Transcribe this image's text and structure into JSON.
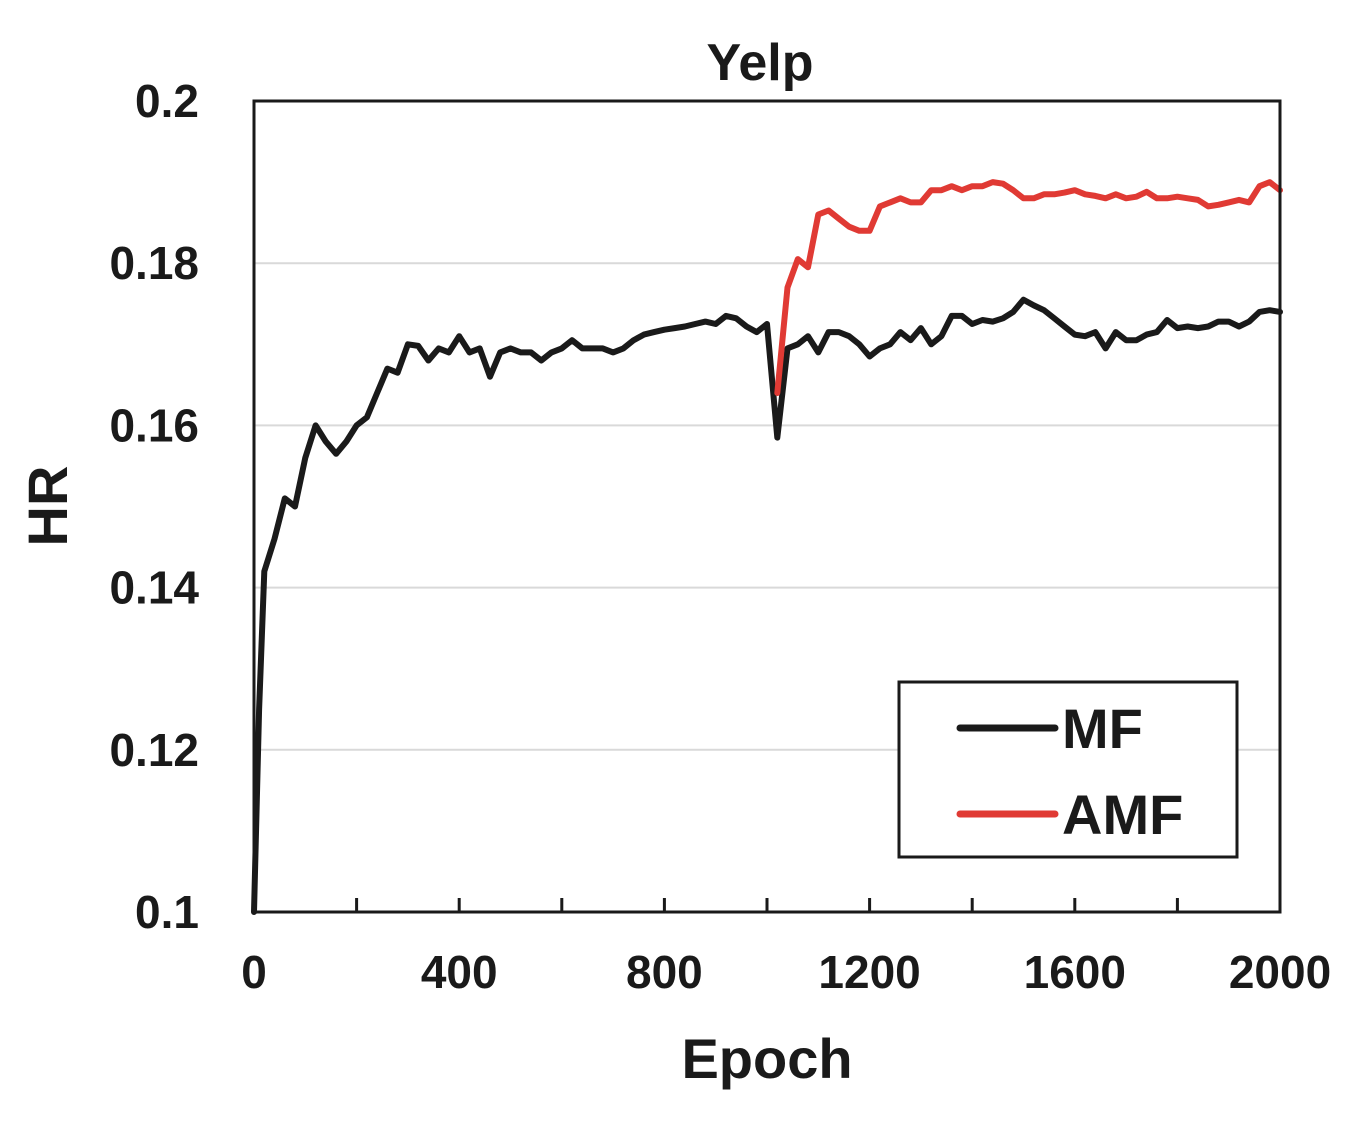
{
  "chart_data": {
    "type": "line",
    "title": "Yelp",
    "xlabel": "Epoch",
    "ylabel": "HR",
    "xlim": [
      0,
      2000
    ],
    "ylim": [
      0.1,
      0.2
    ],
    "xticks": [
      0,
      400,
      800,
      1200,
      1600,
      2000
    ],
    "xtick_labels": [
      "0",
      "400",
      "800",
      "1200",
      "1600",
      "2000"
    ],
    "x_minor_ticks": [
      0,
      200,
      400,
      600,
      800,
      1000,
      1200,
      1400,
      1600,
      1800,
      2000
    ],
    "yticks": [
      0.1,
      0.12,
      0.14,
      0.16,
      0.18,
      0.2
    ],
    "ytick_labels": [
      "0.1",
      "0.12",
      "0.14",
      "0.16",
      "0.18",
      "0.2"
    ],
    "grid": "horizontal",
    "legend_position": "bottom-right",
    "series": [
      {
        "name": "MF",
        "color": "#1a1a1a",
        "x": [
          0,
          10,
          20,
          40,
          60,
          80,
          100,
          120,
          140,
          160,
          180,
          200,
          220,
          240,
          260,
          280,
          300,
          320,
          340,
          360,
          380,
          400,
          420,
          440,
          460,
          480,
          500,
          520,
          540,
          560,
          580,
          600,
          620,
          640,
          660,
          680,
          700,
          720,
          740,
          760,
          780,
          800,
          820,
          840,
          860,
          880,
          900,
          920,
          940,
          960,
          980,
          1000,
          1020,
          1040,
          1060,
          1080,
          1100,
          1120,
          1140,
          1160,
          1180,
          1200,
          1220,
          1240,
          1260,
          1280,
          1300,
          1320,
          1340,
          1360,
          1380,
          1400,
          1420,
          1440,
          1460,
          1480,
          1500,
          1520,
          1540,
          1560,
          1580,
          1600,
          1620,
          1640,
          1660,
          1680,
          1700,
          1720,
          1740,
          1760,
          1780,
          1800,
          1820,
          1840,
          1860,
          1880,
          1900,
          1920,
          1940,
          1960,
          1980,
          2000
        ],
        "y": [
          0.1,
          0.125,
          0.142,
          0.146,
          0.151,
          0.15,
          0.156,
          0.16,
          0.158,
          0.1565,
          0.158,
          0.16,
          0.161,
          0.164,
          0.167,
          0.1665,
          0.17,
          0.1698,
          0.168,
          0.1695,
          0.169,
          0.171,
          0.169,
          0.1695,
          0.166,
          0.169,
          0.1695,
          0.169,
          0.169,
          0.168,
          0.169,
          0.1695,
          0.1705,
          0.1695,
          0.1695,
          0.1695,
          0.169,
          0.1695,
          0.1705,
          0.1712,
          0.1715,
          0.1718,
          0.172,
          0.1722,
          0.1725,
          0.1728,
          0.1725,
          0.1735,
          0.1732,
          0.1722,
          0.1715,
          0.1725,
          0.1585,
          0.1695,
          0.17,
          0.171,
          0.169,
          0.1715,
          0.1715,
          0.171,
          0.17,
          0.1685,
          0.1695,
          0.17,
          0.1715,
          0.1705,
          0.172,
          0.17,
          0.171,
          0.1735,
          0.1735,
          0.1725,
          0.173,
          0.1728,
          0.1732,
          0.174,
          0.1755,
          0.1748,
          0.1742,
          0.1732,
          0.1722,
          0.1712,
          0.171,
          0.1715,
          0.1695,
          0.1715,
          0.1705,
          0.1705,
          0.1712,
          0.1715,
          0.173,
          0.172,
          0.1722,
          0.172,
          0.1722,
          0.1728,
          0.1728,
          0.1722,
          0.1728,
          0.174,
          0.1742,
          0.174
        ]
      },
      {
        "name": "AMF",
        "color": "#e03a34",
        "x": [
          1020,
          1040,
          1060,
          1080,
          1100,
          1120,
          1140,
          1160,
          1180,
          1200,
          1220,
          1240,
          1260,
          1280,
          1300,
          1320,
          1340,
          1360,
          1380,
          1400,
          1420,
          1440,
          1460,
          1480,
          1500,
          1520,
          1540,
          1560,
          1580,
          1600,
          1620,
          1640,
          1660,
          1680,
          1700,
          1720,
          1740,
          1760,
          1780,
          1800,
          1820,
          1840,
          1860,
          1880,
          1900,
          1920,
          1940,
          1960,
          1980,
          2000
        ],
        "y": [
          0.164,
          0.177,
          0.1805,
          0.1795,
          0.186,
          0.1865,
          0.1855,
          0.1845,
          0.184,
          0.184,
          0.187,
          0.1875,
          0.188,
          0.1875,
          0.1875,
          0.189,
          0.189,
          0.1895,
          0.189,
          0.1895,
          0.1895,
          0.19,
          0.1898,
          0.189,
          0.188,
          0.188,
          0.1885,
          0.1885,
          0.1887,
          0.189,
          0.1885,
          0.1883,
          0.188,
          0.1885,
          0.188,
          0.1882,
          0.1888,
          0.188,
          0.188,
          0.1882,
          0.188,
          0.1878,
          0.187,
          0.1872,
          0.1875,
          0.1878,
          0.1875,
          0.1895,
          0.19,
          0.189
        ]
      }
    ]
  }
}
